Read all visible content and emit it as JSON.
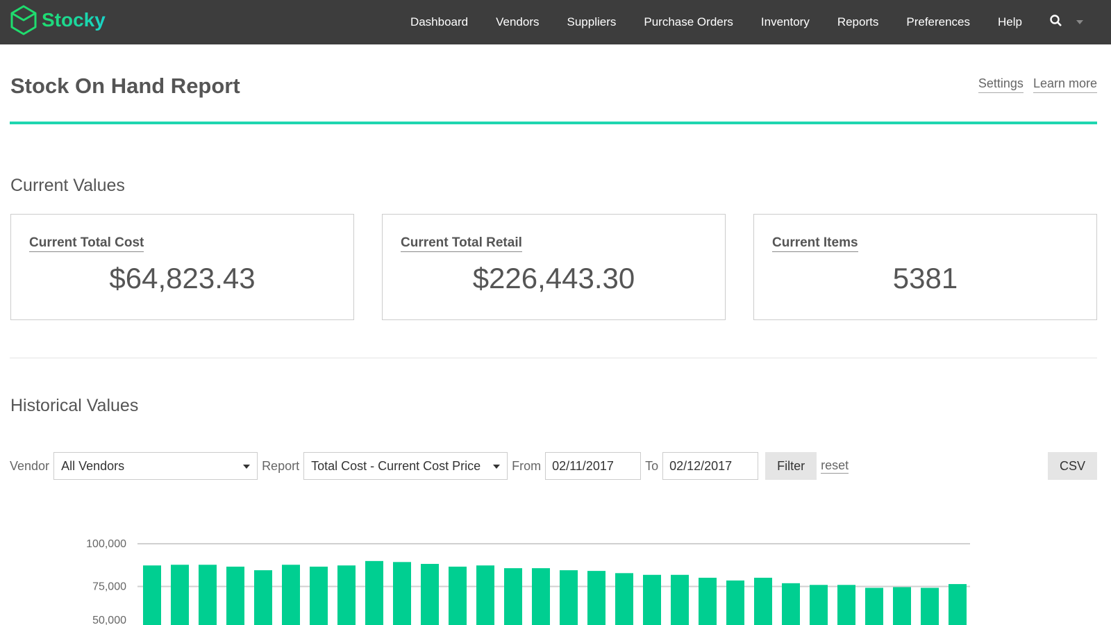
{
  "brand": {
    "name": "Stocky",
    "colors": {
      "green": "#1fdc6e",
      "teal": "#19d3c8",
      "bar": "#00cf91",
      "nav_bg": "#3d3d3d"
    }
  },
  "nav": {
    "items": [
      "Dashboard",
      "Vendors",
      "Suppliers",
      "Purchase Orders",
      "Inventory",
      "Reports",
      "Preferences",
      "Help"
    ],
    "search_icon": "search-icon",
    "menu_icon": "chevron-down-icon"
  },
  "page": {
    "title": "Stock On Hand Report",
    "links": {
      "settings": "Settings",
      "learn_more": "Learn more"
    }
  },
  "current": {
    "heading": "Current Values",
    "cards": [
      {
        "label": "Current Total Cost",
        "value": "$64,823.43"
      },
      {
        "label": "Current Total Retail",
        "value": "$226,443.30"
      },
      {
        "label": "Current Items",
        "value": "5381"
      }
    ]
  },
  "historical": {
    "heading": "Historical Values",
    "filters": {
      "vendor_label": "Vendor",
      "vendor_value": "All Vendors",
      "report_label": "Report",
      "report_value": "Total Cost - Current Cost Price",
      "from_label": "From",
      "from_value": "02/11/2017",
      "to_label": "To",
      "to_value": "02/12/2017",
      "filter_button": "Filter",
      "reset_link": "reset",
      "csv_button": "CSV"
    }
  },
  "chart_data": {
    "type": "bar",
    "ylim": [
      50000,
      100000
    ],
    "yticks": [
      50000,
      75000,
      100000
    ],
    "ytick_labels": [
      "50,000",
      "75,000",
      "100,000"
    ],
    "grid": true,
    "values": [
      87300,
      87700,
      87700,
      86600,
      84500,
      87700,
      86600,
      87300,
      89900,
      89300,
      88200,
      86600,
      87300,
      85700,
      85700,
      84500,
      84100,
      82800,
      81800,
      81800,
      80100,
      78500,
      80100,
      76900,
      75900,
      75900,
      74200,
      74600,
      74200,
      76400
    ]
  }
}
